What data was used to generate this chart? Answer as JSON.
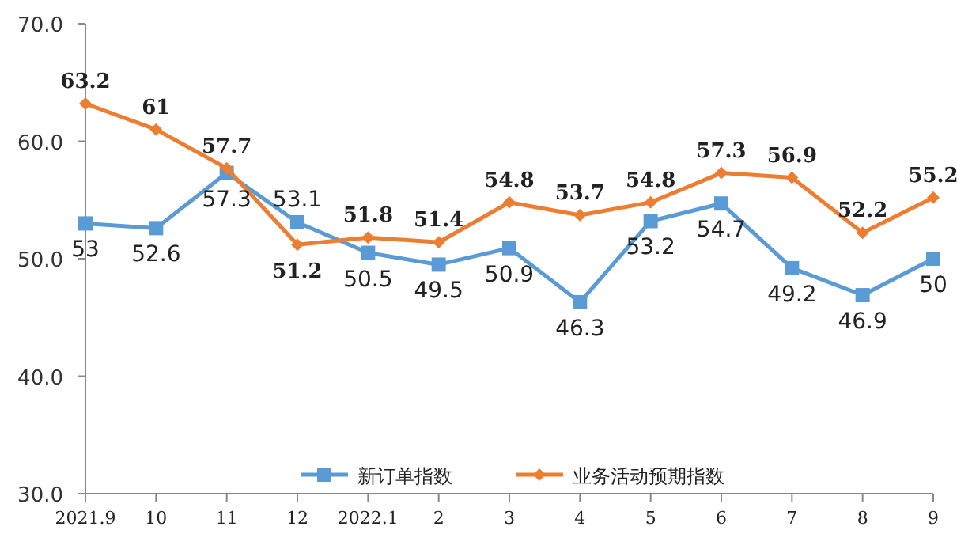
{
  "chart_data": {
    "type": "line",
    "categories": [
      "2021.9",
      "10",
      "11",
      "12",
      "2022.1",
      "2",
      "3",
      "4",
      "5",
      "6",
      "7",
      "8",
      "9"
    ],
    "series": [
      {
        "name": "新订单指数",
        "color": "#5b9bd5",
        "marker": "square",
        "values": [
          53,
          52.6,
          57.3,
          53.1,
          50.5,
          49.5,
          50.9,
          46.3,
          53.2,
          54.7,
          49.2,
          46.9,
          50
        ]
      },
      {
        "name": "业务活动预期指数",
        "color": "#ed7d31",
        "marker": "diamond",
        "values": [
          63.2,
          61,
          57.7,
          51.2,
          51.8,
          51.4,
          54.8,
          53.7,
          54.8,
          57.3,
          56.9,
          52.2,
          55.2
        ]
      }
    ],
    "ylim": [
      30,
      70
    ],
    "yticks": [
      {
        "value": 30,
        "label": "30.0"
      },
      {
        "value": 40,
        "label": "40.0"
      },
      {
        "value": 50,
        "label": "50.0"
      },
      {
        "value": 60,
        "label": "60.0"
      },
      {
        "value": 70,
        "label": "70.0"
      }
    ],
    "data_labels": true,
    "grid": false,
    "legend": "bottom"
  }
}
